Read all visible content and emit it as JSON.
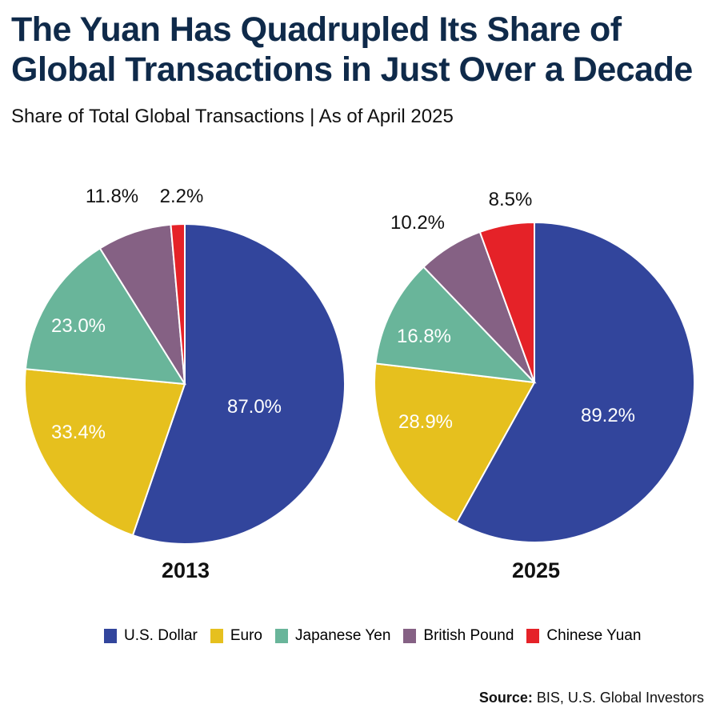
{
  "title_line1": "The Yuan Has Quadrupled Its Share of",
  "title_line2": "Global Transactions in Just Over a Decade",
  "subtitle": "Share of Total Global Transactions | As of April 2025",
  "source_label": "Source:",
  "source_text": " BIS, U.S. Global Investors",
  "chart_data": [
    {
      "type": "pie",
      "title": "2013",
      "categories": [
        "U.S. Dollar",
        "Euro",
        "Japanese Yen",
        "British Pound",
        "Chinese Yuan"
      ],
      "values": [
        87.0,
        33.4,
        23.0,
        11.8,
        2.2
      ],
      "labels": [
        "87.0%",
        "33.4%",
        "23.0%",
        "11.8%",
        "2.2%"
      ]
    },
    {
      "type": "pie",
      "title": "2025",
      "categories": [
        "U.S. Dollar",
        "Euro",
        "Japanese Yen",
        "British Pound",
        "Chinese Yuan"
      ],
      "values": [
        89.2,
        28.9,
        16.8,
        10.2,
        8.5
      ],
      "labels": [
        "89.2%",
        "28.9%",
        "16.8%",
        "10.2%",
        "8.5%"
      ]
    }
  ],
  "legend": [
    {
      "name": "U.S. Dollar",
      "color": "#32459c"
    },
    {
      "name": "Euro",
      "color": "#e6c01e"
    },
    {
      "name": "Japanese Yen",
      "color": "#69b59a"
    },
    {
      "name": "British Pound",
      "color": "#856184"
    },
    {
      "name": "Chinese Yuan",
      "color": "#e52228"
    }
  ]
}
